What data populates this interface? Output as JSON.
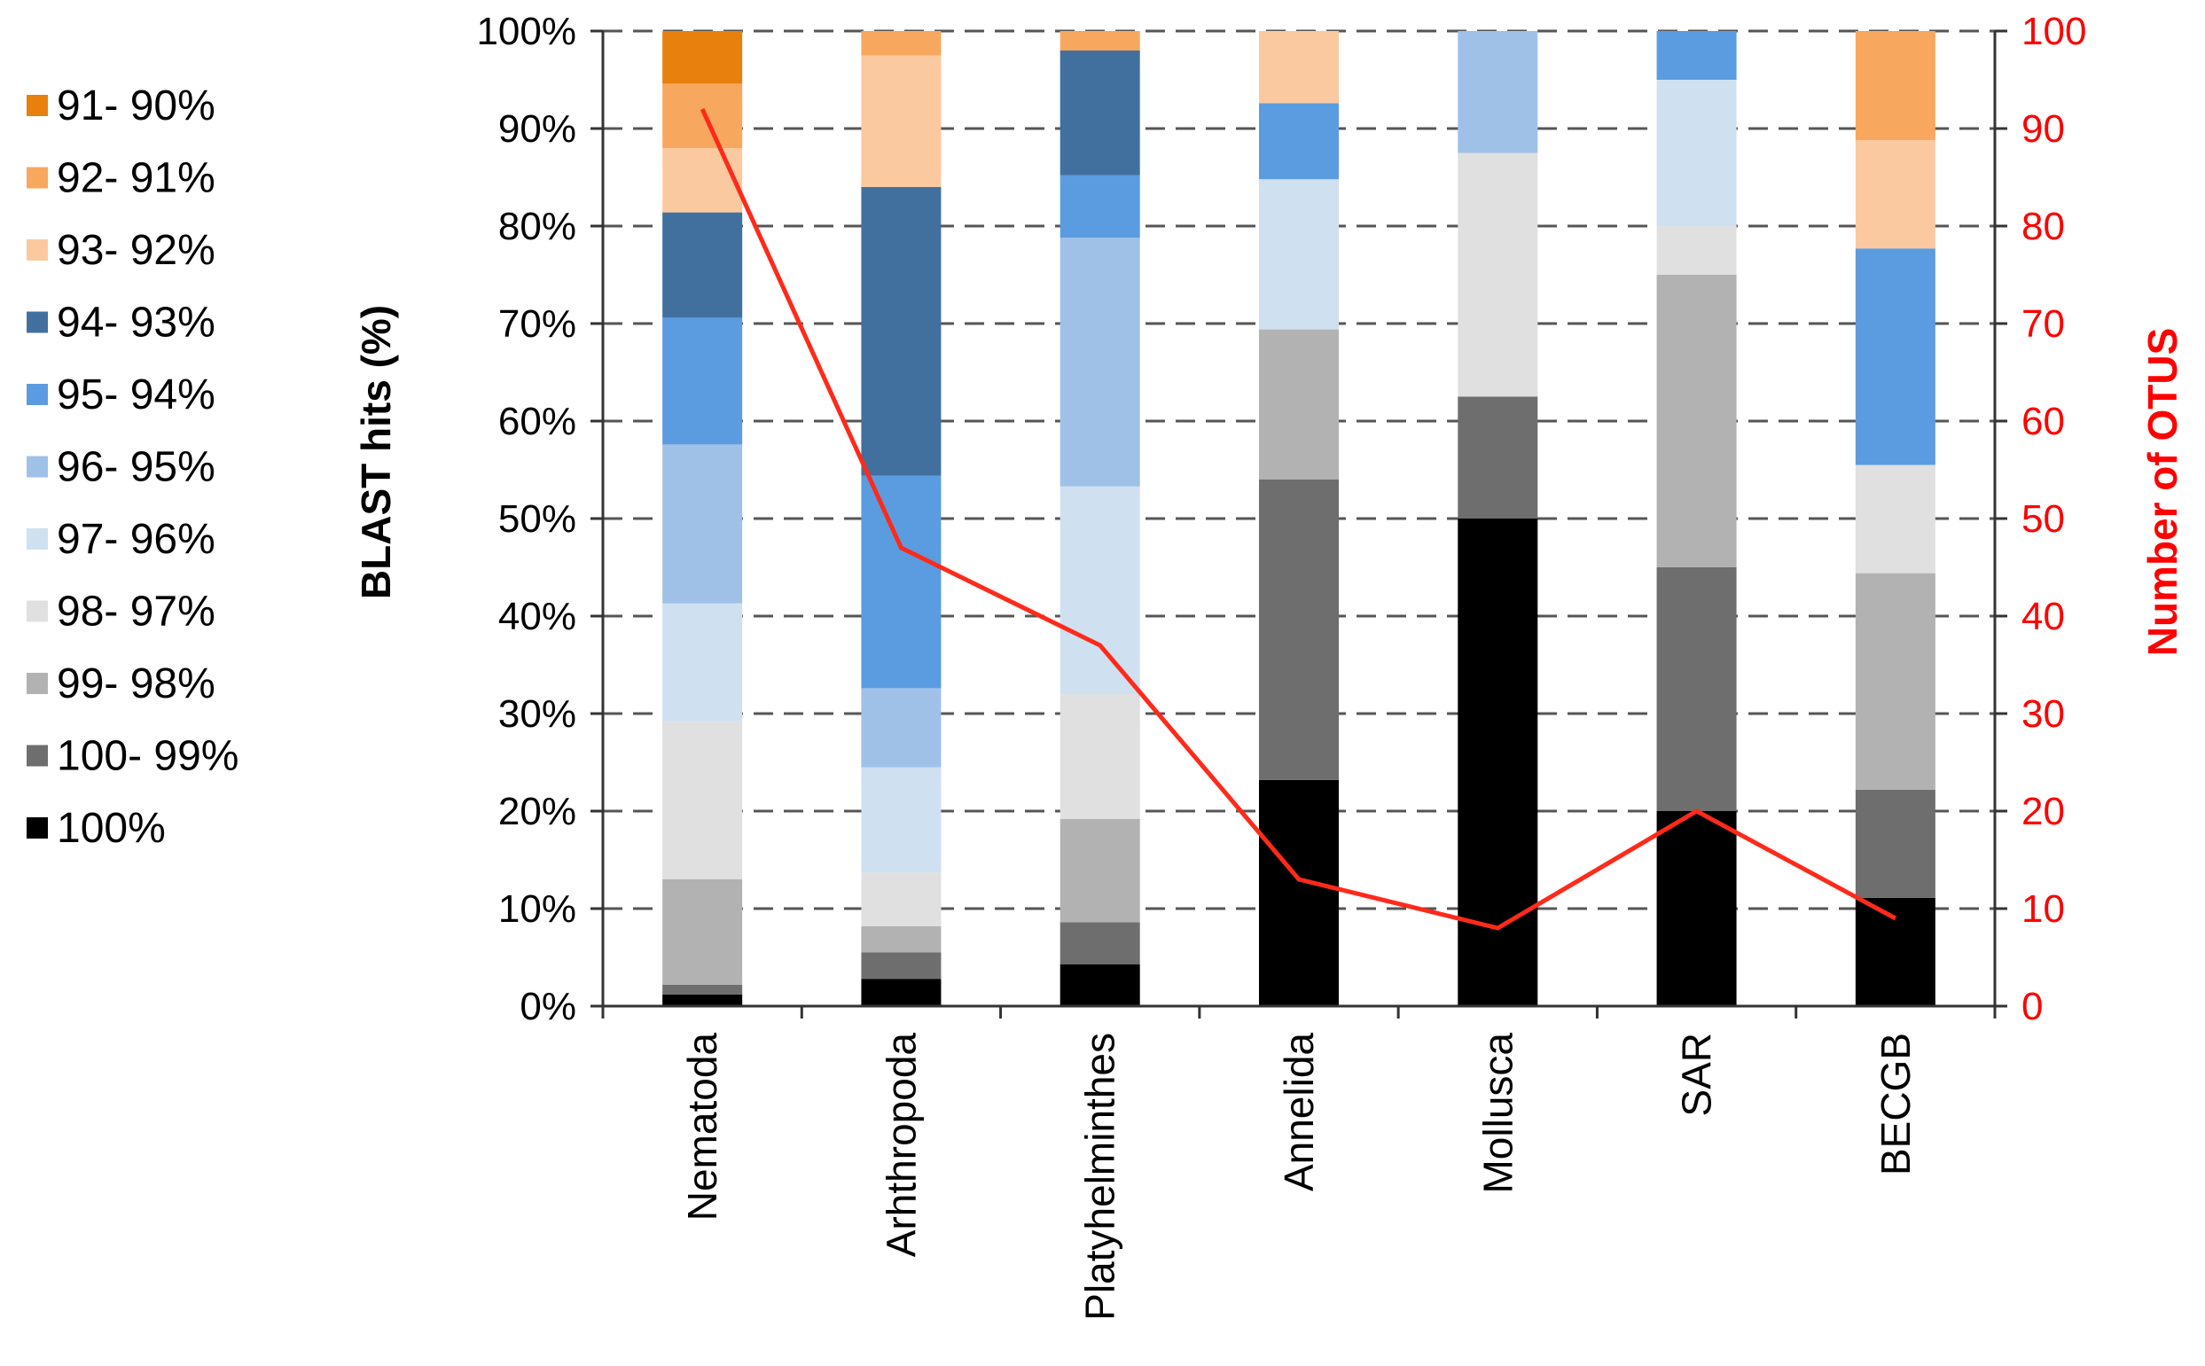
{
  "chart_data": {
    "type": "bar",
    "stacked": true,
    "categories": [
      "Nematoda",
      "Arhthropoda",
      "Platyhelminthes",
      "Annelida",
      "Mollusca",
      "SAR",
      "BECGB"
    ],
    "ylabel": "BLAST hits (%)",
    "y2label": "Number of OTUS",
    "ylim": [
      0,
      100
    ],
    "y2lim": [
      0,
      100
    ],
    "yticks": [
      "0%",
      "10%",
      "20%",
      "30%",
      "40%",
      "50%",
      "60%",
      "70%",
      "80%",
      "90%",
      "100%"
    ],
    "y2ticks": [
      "0",
      "10",
      "20",
      "30",
      "40",
      "50",
      "60",
      "70",
      "80",
      "90",
      "100"
    ],
    "grid": true,
    "legend_position": "left",
    "series": [
      {
        "name": "100%",
        "color": "#000000",
        "values": [
          1.2,
          2.8,
          4.3,
          23.2,
          50.0,
          20.0,
          11.1
        ]
      },
      {
        "name": "100- 99%",
        "color": "#6e6e6e",
        "values": [
          1.0,
          2.7,
          4.3,
          30.8,
          12.5,
          25.0,
          11.1
        ]
      },
      {
        "name": "99- 98%",
        "color": "#b2b2b2",
        "values": [
          10.8,
          2.7,
          10.6,
          15.4,
          0.0,
          30.0,
          22.2
        ]
      },
      {
        "name": "98- 97%",
        "color": "#e0e0e0",
        "values": [
          16.2,
          5.5,
          12.8,
          0.0,
          25.0,
          5.0,
          11.1
        ]
      },
      {
        "name": "97- 96%",
        "color": "#cfe0f1",
        "values": [
          12.1,
          10.8,
          21.3,
          15.4,
          0.0,
          15.0,
          0.0
        ]
      },
      {
        "name": "96- 95%",
        "color": "#9fc1e7",
        "values": [
          16.3,
          8.1,
          25.5,
          0.0,
          12.5,
          0.0,
          0.0
        ]
      },
      {
        "name": "95- 94%",
        "color": "#5b9ce0",
        "values": [
          13.0,
          21.8,
          6.4,
          7.8,
          0.0,
          5.0,
          22.2
        ]
      },
      {
        "name": "94- 93%",
        "color": "#41709e",
        "values": [
          10.8,
          29.6,
          12.8,
          0.0,
          0.0,
          0.0,
          0.0
        ]
      },
      {
        "name": "93- 92%",
        "color": "#fbc9a0",
        "values": [
          6.6,
          13.5,
          0.0,
          7.4,
          0.0,
          0.0,
          11.1
        ]
      },
      {
        "name": "92- 91%",
        "color": "#f8a75f",
        "values": [
          6.6,
          2.5,
          2.0,
          0.0,
          0.0,
          0.0,
          11.2
        ]
      },
      {
        "name": "91- 90%",
        "color": "#e8800e",
        "values": [
          5.4,
          0.0,
          0.0,
          0.0,
          0.0,
          0.0,
          0.0
        ]
      }
    ],
    "line": {
      "name": "Number of OTUS",
      "axis": "right",
      "color": "#ff2a1a",
      "values": [
        92,
        47,
        37,
        13,
        8,
        20,
        9
      ]
    }
  }
}
